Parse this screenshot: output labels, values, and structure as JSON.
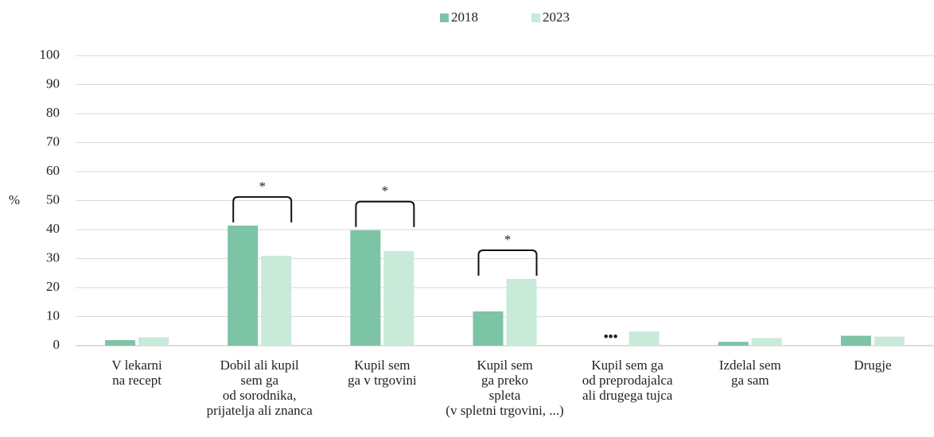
{
  "chart_data": {
    "type": "bar",
    "y_label": "%",
    "categories": [
      "V lekarni\nna recept",
      "Dobil ali kupil\nsem ga\nod sorodnika,\nprijatelja ali znanca",
      "Kupil sem\nga v trgovini",
      "Kupil sem\nga preko\nspleta\n(v spletni trgovini, ...)",
      "Kupil sem ga\nod preprodajalca\nali drugega tujca",
      "Izdelal sem\nga sam",
      "Drugje"
    ],
    "series": [
      {
        "name": "2018",
        "color": "#7dc3a6",
        "values": [
          1.9,
          41.4,
          39.8,
          11.8,
          null,
          1.3,
          3.4
        ]
      },
      {
        "name": "2023",
        "color": "#c8ead9",
        "values": [
          2.9,
          31,
          32.6,
          23,
          4.9,
          2.6,
          3.1
        ]
      }
    ],
    "annotations": [
      {
        "text": "*",
        "category": "Dobil ali kupil\nsem ga\nod sorodnika,\nprijatelja ali znanca"
      },
      {
        "text": "*",
        "category": "Kupil sem\nga v trgovini"
      },
      {
        "text": "*",
        "category": "Kupil sem\nga preko\nspleta\n(v spletni trgovini, ...)"
      },
      {
        "text": "•••",
        "category": "Kupil sem ga\nod preprodajalca\nali drugega tujca",
        "series": "2018"
      }
    ],
    "ylim": [
      0,
      100
    ],
    "yticks": [
      0,
      10,
      20,
      30,
      40,
      50,
      60,
      70,
      80,
      90,
      100
    ],
    "grid": true,
    "legend": "top"
  }
}
